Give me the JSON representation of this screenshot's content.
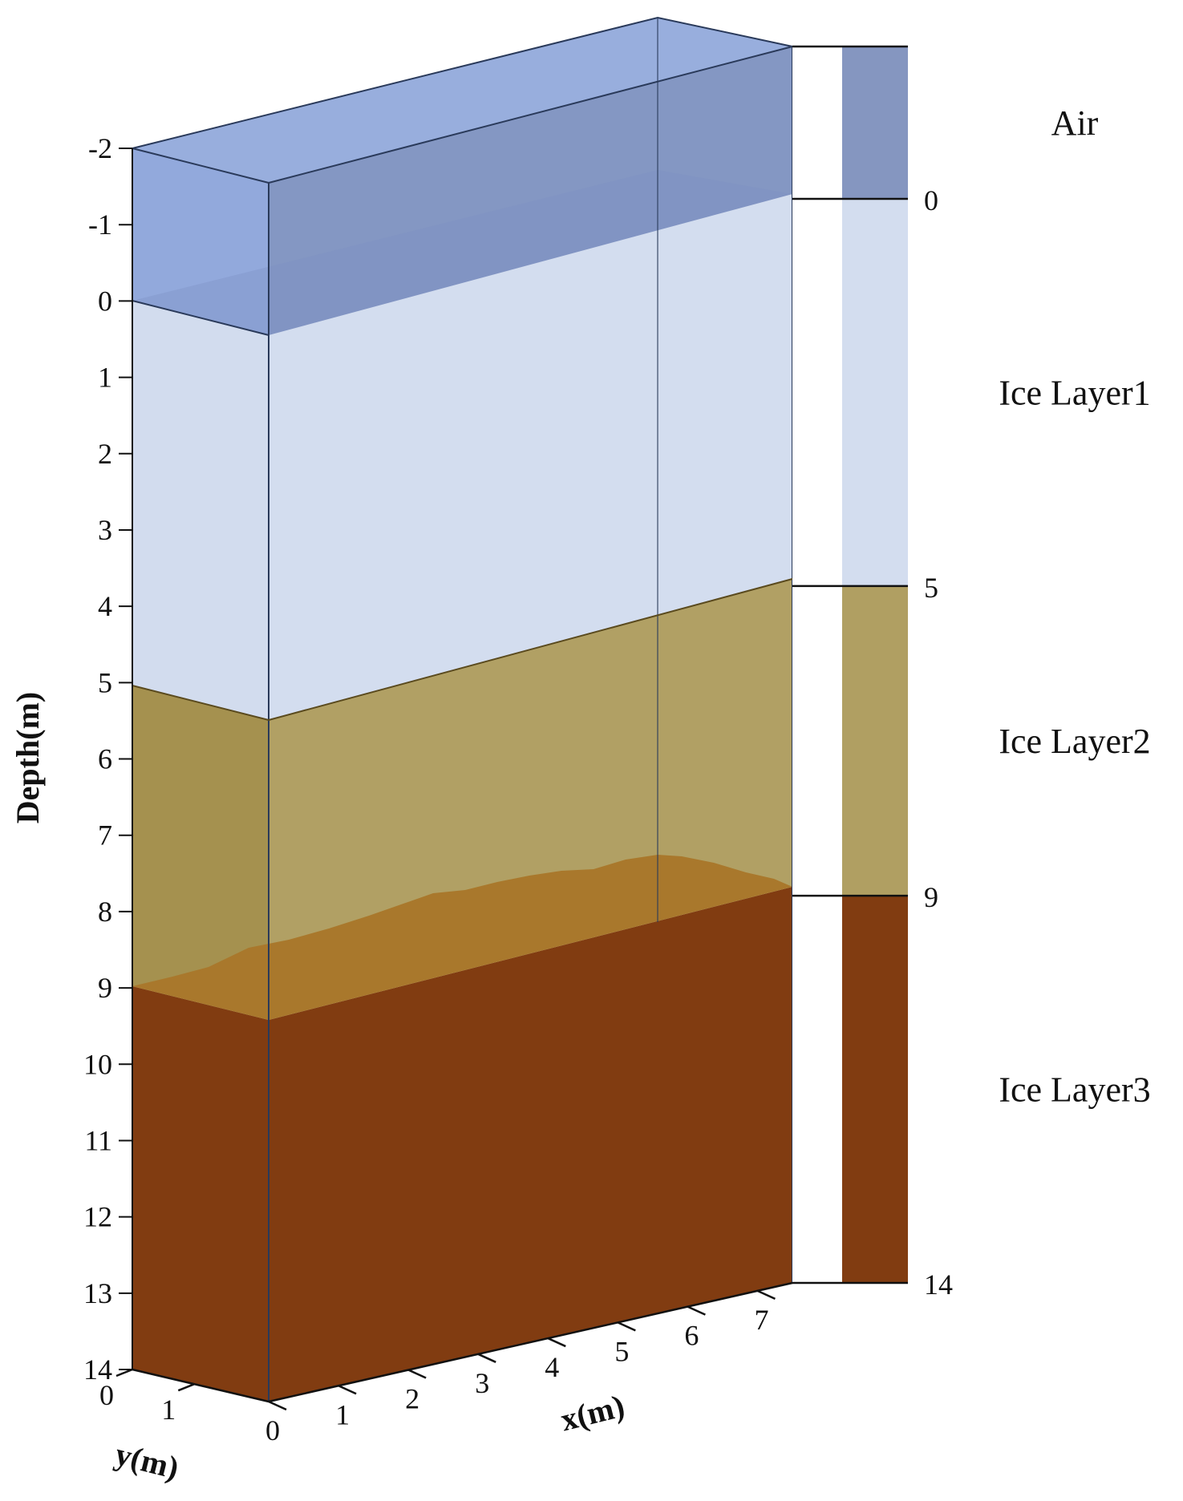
{
  "axes": {
    "depth": {
      "title": "Depth(m)",
      "ticks": [
        -2,
        -1,
        0,
        1,
        2,
        3,
        4,
        5,
        6,
        7,
        8,
        9,
        10,
        11,
        12,
        13,
        14
      ]
    },
    "x": {
      "title": "x(m)",
      "ticks": [
        0,
        1,
        2,
        3,
        4,
        5,
        6,
        7
      ]
    },
    "y": {
      "title": "y(m)",
      "ticks": [
        0,
        1
      ]
    }
  },
  "layers": [
    {
      "name": "Air",
      "top": -2,
      "bottom": 0,
      "color": "#8596c0"
    },
    {
      "name": "Ice Layer1",
      "top": 0,
      "bottom": 5,
      "color": "#d3ddef"
    },
    {
      "name": "Ice Layer2",
      "top": 5,
      "bottom": 9,
      "color": "#b09f62"
    },
    {
      "name": "Ice Layer3",
      "top": 9,
      "bottom": 14,
      "color": "#813c11"
    }
  ],
  "legend": {
    "boundaries": [
      0,
      5,
      9,
      14
    ]
  },
  "colors": {
    "air_box": "#7f9ad6",
    "edge": "#2a3a5a",
    "ice1_surface": "#b7bcb5",
    "ice2_surface": "#a87a2e",
    "ice3_front": "#823c0f"
  }
}
